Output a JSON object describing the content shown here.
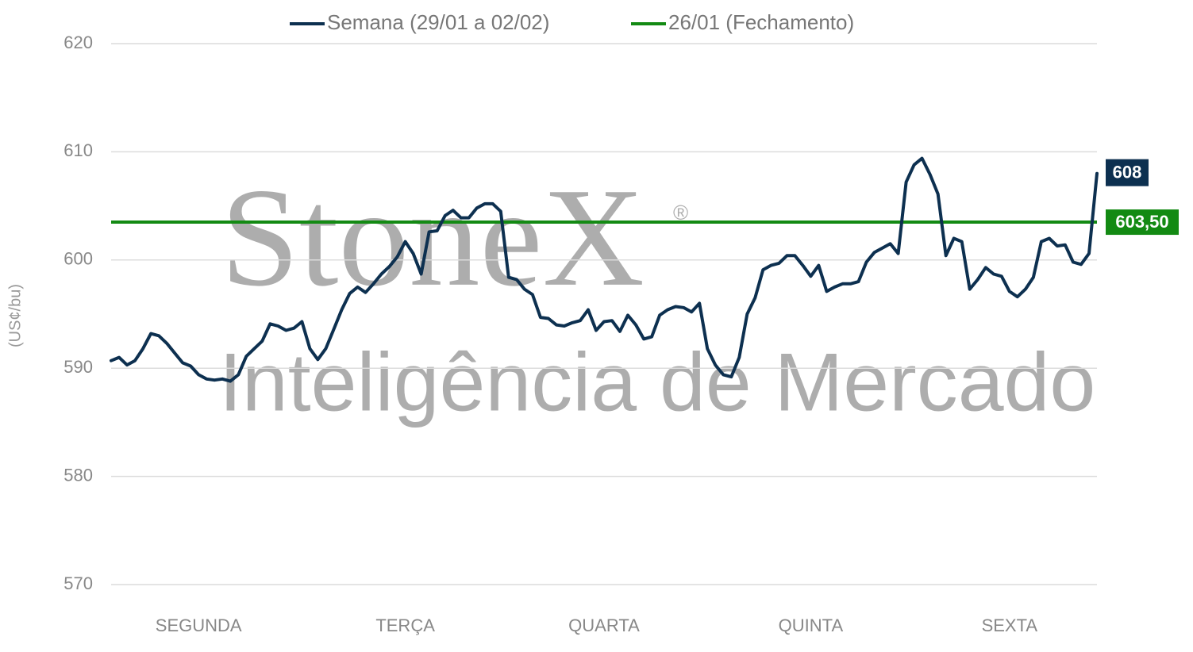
{
  "chart_data": {
    "type": "line",
    "y_axis_label": "(US¢/bu)",
    "watermark": {
      "brand": "StoneX",
      "mark": "®",
      "tagline": "Inteligência de Mercado"
    },
    "categories": [
      null,
      null,
      null,
      null,
      null,
      null,
      null,
      null,
      null,
      null,
      null,
      "SEGUNDA",
      null,
      null,
      null,
      null,
      null,
      null,
      null,
      null,
      null,
      null,
      null,
      null,
      null,
      null,
      null,
      null,
      null,
      null,
      null,
      null,
      null,
      null,
      null,
      null,
      null,
      "TERÇA",
      null,
      null,
      null,
      null,
      null,
      null,
      null,
      null,
      null,
      null,
      null,
      null,
      null,
      null,
      null,
      null,
      null,
      null,
      null,
      null,
      null,
      null,
      null,
      null,
      "QUARTA",
      null,
      null,
      null,
      null,
      null,
      null,
      null,
      null,
      null,
      null,
      null,
      null,
      null,
      null,
      null,
      null,
      null,
      null,
      null,
      null,
      null,
      null,
      null,
      null,
      null,
      "QUINTA",
      null,
      null,
      null,
      null,
      null,
      null,
      null,
      null,
      null,
      null,
      null,
      null,
      null,
      null,
      null,
      null,
      null,
      null,
      null,
      null,
      null,
      null,
      null,
      null,
      "SEXTA",
      null,
      null,
      null,
      null,
      null,
      null,
      null,
      null,
      null,
      null,
      null
    ],
    "series": [
      {
        "name": "Semana (29/01 a 02/02)",
        "color": "#0d3050",
        "last_value_label": "608",
        "values": [
          590.7,
          591.0,
          590.3,
          590.7,
          591.8,
          593.2,
          593.0,
          592.3,
          591.4,
          590.5,
          590.2,
          589.4,
          589.0,
          588.9,
          589.0,
          588.8,
          589.4,
          591.1,
          591.8,
          592.5,
          594.1,
          593.9,
          593.5,
          593.7,
          594.3,
          591.8,
          590.8,
          591.8,
          593.6,
          595.4,
          596.9,
          597.5,
          597.0,
          597.8,
          598.7,
          599.4,
          600.3,
          601.7,
          600.6,
          598.7,
          602.6,
          602.7,
          604.1,
          604.6,
          603.9,
          603.9,
          604.8,
          605.2,
          605.2,
          604.5,
          598.4,
          598.2,
          597.3,
          596.8,
          594.7,
          594.6,
          594.0,
          593.9,
          594.2,
          594.4,
          595.4,
          593.5,
          594.3,
          594.4,
          593.4,
          594.9,
          594.0,
          592.7,
          592.9,
          594.9,
          595.4,
          595.7,
          595.6,
          595.2,
          596.0,
          591.8,
          590.3,
          589.4,
          589.2,
          591.0,
          595.0,
          596.5,
          599.1,
          599.5,
          599.7,
          600.4,
          600.4,
          599.5,
          598.5,
          599.5,
          597.1,
          597.5,
          597.8,
          597.8,
          598.0,
          599.8,
          600.7,
          601.1,
          601.5,
          600.6,
          607.2,
          608.8,
          609.4,
          607.9,
          606.1,
          600.4,
          602.0,
          601.7,
          597.3,
          598.2,
          599.3,
          598.7,
          598.5,
          597.1,
          596.6,
          597.3,
          598.4,
          601.7,
          602.0,
          601.3,
          601.4,
          599.8,
          599.6,
          600.6,
          608.0
        ]
      }
    ],
    "reference_lines": [
      {
        "name": "26/01 (Fechamento)",
        "value": 603.5,
        "value_label": "603,50",
        "color": "#138a13"
      }
    ],
    "ylim": [
      570,
      620
    ],
    "yticks": [
      570,
      580,
      590,
      600,
      610,
      620
    ],
    "grid": true
  }
}
